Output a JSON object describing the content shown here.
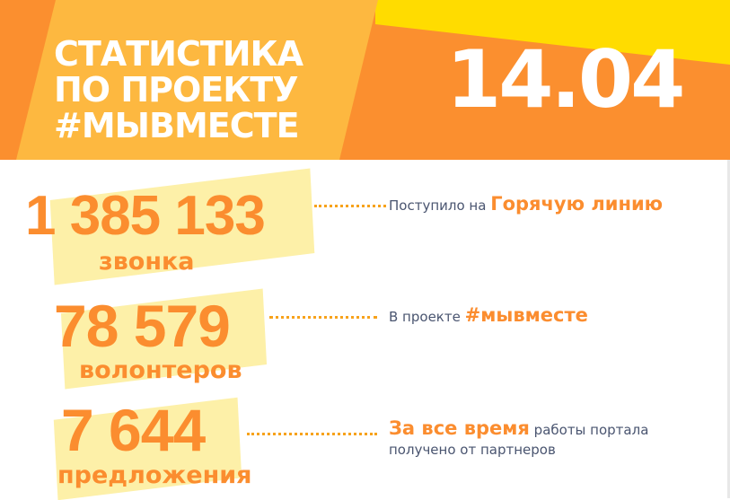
{
  "header": {
    "title_lines": [
      "СТАТИСТИКА",
      "ПО ПРОЕКТУ",
      "#МЫВМЕСТЕ"
    ],
    "date": "14.04"
  },
  "colors": {
    "orange": "#fb8f2f",
    "light_orange": "#fdb840",
    "yellow": "#ffdc00",
    "highlight": "#fdf0a8",
    "text": "#4a5570"
  },
  "stats": [
    {
      "value": "1 385 133",
      "unit": "звонка",
      "desc_pre": "Поступило на ",
      "desc_hl": "Горячую линию",
      "desc_post": ""
    },
    {
      "value": "78 579",
      "unit": "волонтеров",
      "desc_pre": "В проекте ",
      "desc_hl": "#мывместе",
      "desc_post": ""
    },
    {
      "value": "7 644",
      "unit": "предложения",
      "desc_hl": "За все время",
      "desc_post": " работы портала",
      "desc_line2": "получено от партнеров"
    }
  ]
}
